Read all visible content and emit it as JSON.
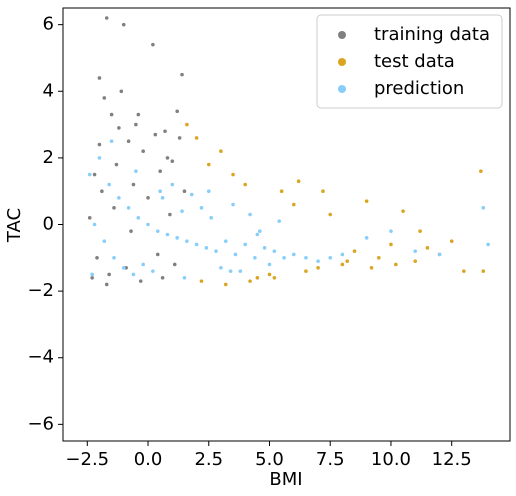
{
  "chart_data": {
    "type": "scatter",
    "x_label": "BMI",
    "y_label": "TAC",
    "xlim": [
      -3.5,
      14.9
    ],
    "ylim": [
      -6.5,
      6.5
    ],
    "xticks": [
      {
        "value": -2.5,
        "label": "−2.5"
      },
      {
        "value": 0,
        "label": "0.0"
      },
      {
        "value": 2.5,
        "label": "2.5"
      },
      {
        "value": 5,
        "label": "5.0"
      },
      {
        "value": 7.5,
        "label": "7.5"
      },
      {
        "value": 10,
        "label": "10.0"
      },
      {
        "value": 12.5,
        "label": "12.5"
      }
    ],
    "yticks": [
      {
        "value": -6,
        "label": "−6"
      },
      {
        "value": -4,
        "label": "−4"
      },
      {
        "value": -2,
        "label": "−2"
      },
      0,
      2,
      4,
      6
    ],
    "grid": false,
    "legend": "upper right",
    "series": [
      {
        "name": "training data",
        "color": "#808080",
        "x": [
          -1.7,
          -1.0,
          0.2,
          1.4,
          -2.0,
          -1.8,
          -1.5,
          -1.2,
          -0.8,
          -0.5,
          -0.2,
          0.3,
          0.8,
          1.2,
          -2.2,
          -2.4,
          -1.9,
          -1.3,
          -0.6,
          0.0,
          0.5,
          1.0,
          1.5,
          -2.1,
          -1.6,
          -0.9,
          -0.3,
          0.6,
          1.1,
          -2.3,
          -1.4,
          -0.7,
          0.4,
          0.9,
          1.3,
          -1.1,
          -2.0,
          -0.4,
          0.7,
          -1.7
        ],
        "values": [
          6.2,
          6.0,
          5.4,
          4.5,
          4.4,
          3.8,
          3.3,
          2.9,
          2.5,
          3.0,
          2.2,
          2.7,
          2.0,
          3.4,
          1.5,
          0.2,
          1.0,
          1.8,
          1.2,
          0.8,
          1.6,
          1.9,
          1.0,
          -1.0,
          -1.5,
          -1.3,
          -1.7,
          -1.6,
          -1.2,
          -1.6,
          0.5,
          -0.2,
          -0.9,
          0.3,
          2.6,
          4.0,
          2.4,
          3.3,
          2.8,
          -1.8
        ]
      },
      {
        "name": "test data",
        "color": "#daa520",
        "x": [
          1.6,
          2.0,
          2.5,
          3.0,
          3.5,
          4.0,
          4.5,
          5.0,
          5.5,
          6.0,
          6.5,
          7.0,
          7.5,
          8.0,
          8.5,
          9.0,
          9.5,
          10.0,
          10.5,
          11.0,
          11.5,
          12.0,
          12.5,
          13.0,
          13.7,
          13.8,
          2.2,
          3.2,
          4.2,
          5.2,
          6.2,
          7.2,
          8.2,
          9.2,
          10.2,
          11.2
        ],
        "values": [
          3.0,
          2.6,
          1.8,
          2.2,
          1.5,
          1.2,
          -1.6,
          -1.5,
          1.0,
          0.6,
          -1.4,
          -1.3,
          0.3,
          -1.2,
          -0.8,
          0.7,
          -1.0,
          -0.6,
          0.4,
          -1.1,
          -0.7,
          -0.9,
          -0.5,
          -1.4,
          1.6,
          -1.4,
          -1.7,
          -1.8,
          -1.7,
          -1.6,
          1.3,
          1.0,
          -1.1,
          -1.3,
          -1.2,
          -0.2
        ]
      },
      {
        "name": "prediction",
        "color": "#87cefa",
        "x": [
          -2.4,
          -2.0,
          -1.6,
          -1.2,
          -0.8,
          -0.4,
          0.0,
          0.4,
          0.8,
          1.2,
          1.6,
          2.0,
          2.4,
          2.8,
          3.2,
          3.6,
          4.0,
          4.4,
          4.8,
          5.2,
          5.6,
          6.0,
          6.5,
          7.0,
          7.5,
          8.0,
          -2.2,
          -1.8,
          -1.4,
          -1.0,
          -0.6,
          -0.2,
          0.2,
          0.6,
          1.0,
          1.4,
          1.8,
          2.2,
          2.6,
          3.0,
          3.4,
          3.8,
          4.2,
          4.6,
          5.0,
          5.4,
          -2.3,
          -1.5,
          -0.5,
          0.5,
          1.5,
          2.5,
          3.5,
          4.5,
          9.0,
          10.0,
          11.0,
          12.0,
          13.8,
          14.0
        ],
        "values": [
          1.5,
          2.0,
          1.2,
          0.8,
          0.5,
          0.2,
          0.0,
          -0.2,
          -0.3,
          -0.4,
          -0.5,
          -0.6,
          -0.7,
          -0.8,
          -0.5,
          -0.9,
          -0.6,
          -1.0,
          -0.7,
          -0.8,
          -1.0,
          -0.9,
          -1.0,
          -1.1,
          -1.0,
          -0.9,
          0.0,
          -0.5,
          -1.0,
          -1.3,
          -1.5,
          -1.2,
          -1.4,
          0.8,
          1.2,
          0.4,
          0.9,
          0.5,
          0.2,
          -1.3,
          -1.4,
          -1.4,
          0.3,
          -0.2,
          -1.2,
          0.1,
          -1.5,
          2.5,
          1.6,
          1.0,
          -1.6,
          1.0,
          0.6,
          -0.3,
          -0.4,
          -0.2,
          -0.8,
          -0.9,
          0.5,
          -0.6
        ]
      }
    ]
  }
}
